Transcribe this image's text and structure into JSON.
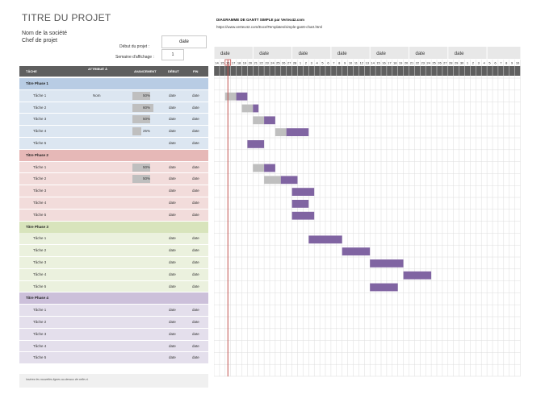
{
  "header": {
    "title": "TITRE DU PROJET",
    "company": "Nom de la société",
    "manager": "Chef de projet",
    "start_label": "Début du projet :",
    "start_value": "date",
    "week_label": "Semaine d'affichage :",
    "week_value": "1",
    "gantt_title": "DIAGRAMME DE GANTT SIMPLE par Vertex42.com",
    "gantt_url": "https://www.vertex42.com/ExcelTemplates/simple-gantt-chart.html"
  },
  "columns": [
    "TÂCHE",
    "ATTRIBUÉ À",
    "AVANCEMENT",
    "DÉBUT",
    "FIN"
  ],
  "week_labels": [
    "date",
    "date",
    "date",
    "date",
    "date",
    "date",
    "date"
  ],
  "day_numbers": [
    "14",
    "15",
    "16",
    "17",
    "18",
    "19",
    "20",
    "21",
    "22",
    "23",
    "24",
    "25",
    "26",
    "27",
    "28",
    "1",
    "2",
    "3",
    "4",
    "5",
    "6",
    "7",
    "8",
    "9",
    "10",
    "11",
    "12",
    "13",
    "14",
    "15",
    "16",
    "17",
    "18",
    "19",
    "20",
    "21",
    "22",
    "23",
    "24",
    "25",
    "26",
    "27",
    "28",
    "29",
    "30",
    "1",
    "2",
    "3",
    "4",
    "5",
    "6",
    "7",
    "8",
    "9",
    "10"
  ],
  "colors": {
    "bar": "#8064a2",
    "progress_fill": "#bfbfbf",
    "today_line": "#c0504d",
    "phase_colors": [
      {
        "header": "#b8cce4",
        "row": "#dce6f1"
      },
      {
        "header": "#e6b8b7",
        "row": "#f2dcdb"
      },
      {
        "header": "#d8e4bc",
        "row": "#ebf1de"
      },
      {
        "header": "#ccc0da",
        "row": "#e4dfec"
      }
    ]
  },
  "phases": [
    {
      "title": "Titre Phase 1",
      "tasks": [
        {
          "name": "Tâche 1",
          "assigned": "Nom",
          "progress": "50%",
          "progress_value": 0.5,
          "start": "date",
          "end": "date",
          "bar_start_day": 2,
          "bar_days": 4
        },
        {
          "name": "Tâche 2",
          "assigned": "",
          "progress": "60%",
          "progress_value": 0.6,
          "start": "date",
          "end": "date",
          "bar_start_day": 5,
          "bar_days": 3
        },
        {
          "name": "Tâche 3",
          "assigned": "",
          "progress": "50%",
          "progress_value": 0.5,
          "start": "date",
          "end": "date",
          "bar_start_day": 7,
          "bar_days": 4
        },
        {
          "name": "Tâche 4",
          "assigned": "",
          "progress": "25%",
          "progress_value": 0.25,
          "start": "date",
          "end": "date",
          "bar_start_day": 11,
          "bar_days": 6
        },
        {
          "name": "Tâche 5",
          "assigned": "",
          "progress": "",
          "progress_value": 0,
          "start": "date",
          "end": "date",
          "bar_start_day": 6,
          "bar_days": 3
        }
      ]
    },
    {
      "title": "Titre Phase 2",
      "tasks": [
        {
          "name": "Tâche 1",
          "assigned": "",
          "progress": "50%",
          "progress_value": 0.5,
          "start": "date",
          "end": "date",
          "bar_start_day": 7,
          "bar_days": 4
        },
        {
          "name": "Tâche 2",
          "assigned": "",
          "progress": "50%",
          "progress_value": 0.5,
          "start": "date",
          "end": "date",
          "bar_start_day": 9,
          "bar_days": 6
        },
        {
          "name": "Tâche 3",
          "assigned": "",
          "progress": "",
          "progress_value": 0,
          "start": "date",
          "end": "date",
          "bar_start_day": 14,
          "bar_days": 4
        },
        {
          "name": "Tâche 4",
          "assigned": "",
          "progress": "",
          "progress_value": 0,
          "start": "date",
          "end": "date",
          "bar_start_day": 14,
          "bar_days": 3
        },
        {
          "name": "Tâche 5",
          "assigned": "",
          "progress": "",
          "progress_value": 0,
          "start": "date",
          "end": "date",
          "bar_start_day": 14,
          "bar_days": 4
        }
      ]
    },
    {
      "title": "Titre Phase 3",
      "tasks": [
        {
          "name": "Tâche 1",
          "assigned": "",
          "progress": "",
          "progress_value": 0,
          "start": "date",
          "end": "date",
          "bar_start_day": 17,
          "bar_days": 6
        },
        {
          "name": "Tâche 2",
          "assigned": "",
          "progress": "",
          "progress_value": 0,
          "start": "date",
          "end": "date",
          "bar_start_day": 23,
          "bar_days": 5
        },
        {
          "name": "Tâche 3",
          "assigned": "",
          "progress": "",
          "progress_value": 0,
          "start": "date",
          "end": "date",
          "bar_start_day": 28,
          "bar_days": 6
        },
        {
          "name": "Tâche 4",
          "assigned": "",
          "progress": "",
          "progress_value": 0,
          "start": "date",
          "end": "date",
          "bar_start_day": 34,
          "bar_days": 5
        },
        {
          "name": "Tâche 5",
          "assigned": "",
          "progress": "",
          "progress_value": 0,
          "start": "date",
          "end": "date",
          "bar_start_day": 28,
          "bar_days": 5
        }
      ]
    },
    {
      "title": "Titre Phase 4",
      "tasks": [
        {
          "name": "Tâche 1",
          "assigned": "",
          "progress": "",
          "progress_value": 0,
          "start": "date",
          "end": "date",
          "bar_start_day": null,
          "bar_days": 0
        },
        {
          "name": "Tâche 2",
          "assigned": "",
          "progress": "",
          "progress_value": 0,
          "start": "date",
          "end": "date",
          "bar_start_day": null,
          "bar_days": 0
        },
        {
          "name": "Tâche 3",
          "assigned": "",
          "progress": "",
          "progress_value": 0,
          "start": "date",
          "end": "date",
          "bar_start_day": null,
          "bar_days": 0
        },
        {
          "name": "Tâche 4",
          "assigned": "",
          "progress": "",
          "progress_value": 0,
          "start": "date",
          "end": "date",
          "bar_start_day": null,
          "bar_days": 0
        },
        {
          "name": "Tâche 5",
          "assigned": "",
          "progress": "",
          "progress_value": 0,
          "start": "date",
          "end": "date",
          "bar_start_day": null,
          "bar_days": 0
        }
      ]
    }
  ],
  "footer_note": "Insérez les nouvelles lignes au-dessus de celle-ci."
}
